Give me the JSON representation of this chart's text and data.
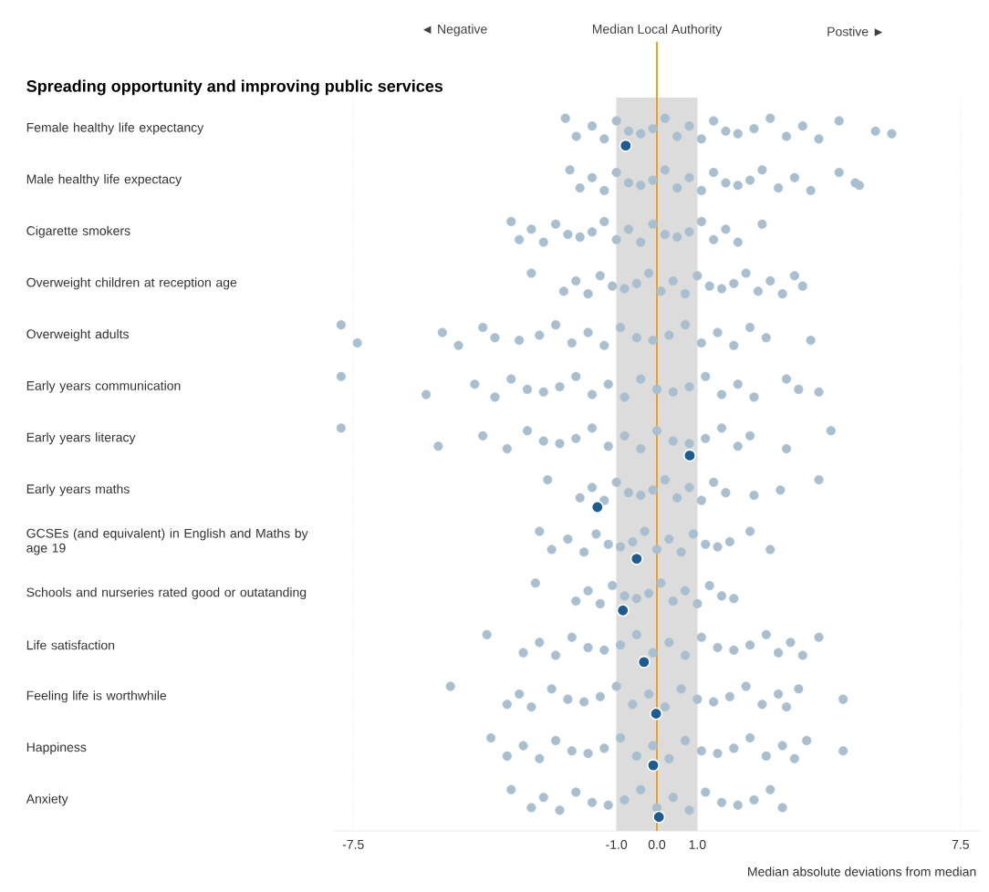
{
  "chart_data": {
    "type": "scatter",
    "orientation": "horizontal",
    "title": "Spreading opportunity and improving public services",
    "xlabel": "Median absolute deviations from median",
    "annotations": [
      "◄ Negative",
      "Postive ►"
    ],
    "xlim": [
      -8,
      8
    ],
    "xticks": [
      -7.5,
      {
        "value": -1,
        "label": "-1.0"
      },
      {
        "value": 0,
        "label": "0.0"
      },
      {
        "value": 1,
        "label": "1.0"
      },
      7.5
    ],
    "categories": [
      "Female healthy life expectancy",
      "Male healthy life expectacy",
      "Cigarette smokers",
      "Overweight children at reception age",
      "Overweight adults",
      "Early years communication",
      "Early years literacy",
      "Early years maths",
      "GCSEs (and equivalent) in English and Maths by age 19",
      "Schools and nurseries rated good or outatanding",
      "Life satisfaction",
      "Feeling life is worthwhile",
      "Happiness",
      "Anxiety"
    ],
    "grid": "x",
    "marker": "circle",
    "ref_lines": [
      {
        "axis": "x",
        "value": 0,
        "label": "Median Local Authority",
        "color": "#f0a020"
      }
    ],
    "bands": [
      {
        "axis": "x",
        "from": -1,
        "to": 1,
        "color": "#dcdcdc"
      }
    ],
    "series": [
      {
        "color": "#a9bfcf",
        "values": [
          -2.26,
          -2.15,
          -3.6,
          -3.1,
          -7.8,
          -7.8,
          -7.8,
          -2.7,
          -2.9,
          -3.0,
          -4.2,
          -5.1,
          -4.1,
          -3.6
        ]
      },
      {
        "color": "#a9bfcf",
        "values": [
          -1.99,
          -1.9,
          -3.4,
          -2.3,
          -7.4,
          -5.7,
          -5.4,
          -1.9,
          -2.6,
          -2.0,
          -3.3,
          -3.7,
          -3.7,
          -3.1
        ]
      },
      {
        "color": "#a9bfcf",
        "values": [
          -1.6,
          -1.6,
          -3.1,
          -2.0,
          -5.3,
          -4.5,
          -4.3,
          -1.6,
          -2.2,
          -1.7,
          -2.9,
          -3.4,
          -3.3,
          -2.8
        ]
      },
      {
        "color": "#a9bfcf",
        "values": [
          -1.3,
          -1.3,
          -2.8,
          -1.7,
          -4.9,
          -4.0,
          -3.7,
          -1.3,
          -1.8,
          -1.4,
          -2.5,
          -3.1,
          -2.9,
          -2.4
        ]
      },
      {
        "color": "#a9bfcf",
        "values": [
          -1.0,
          -1.0,
          -2.5,
          -1.4,
          -4.3,
          -3.6,
          -3.2,
          -1.0,
          -1.5,
          -1.1,
          -2.1,
          -2.6,
          -2.5,
          -2.0
        ]
      },
      {
        "color": "#a9bfcf",
        "values": [
          -0.7,
          -0.7,
          -2.2,
          -1.1,
          -4.0,
          -3.2,
          -2.8,
          -0.7,
          -1.2,
          -0.8,
          -1.7,
          -2.2,
          -2.1,
          -1.6
        ]
      },
      {
        "color": "#a9bfcf",
        "values": [
          -0.4,
          -0.4,
          -1.9,
          -0.8,
          -3.4,
          -2.8,
          -2.4,
          -0.4,
          -0.9,
          -0.5,
          -1.3,
          -1.8,
          -1.7,
          -1.2
        ]
      },
      {
        "color": "#a9bfcf",
        "values": [
          -0.1,
          -0.1,
          -1.6,
          -0.5,
          -2.9,
          -2.4,
          -2.0,
          -0.1,
          -0.6,
          -0.2,
          -0.9,
          -1.4,
          -1.3,
          -0.8
        ]
      },
      {
        "color": "#a9bfcf",
        "values": [
          0.2,
          0.2,
          -1.3,
          -0.2,
          -2.5,
          -2.0,
          -1.6,
          0.2,
          -0.3,
          0.1,
          -0.5,
          -1.0,
          -0.9,
          -0.4
        ]
      },
      {
        "color": "#a9bfcf",
        "values": [
          0.5,
          0.5,
          -1.0,
          0.1,
          -2.1,
          -1.6,
          -1.2,
          0.5,
          0,
          0.4,
          -0.1,
          -0.6,
          -0.5,
          0
        ]
      },
      {
        "color": "#a9bfcf",
        "values": [
          0.8,
          0.8,
          -0.7,
          0.4,
          -1.7,
          -1.2,
          -0.8,
          0.8,
          0.3,
          0.7,
          0.3,
          -0.2,
          -0.1,
          0.4
        ]
      },
      {
        "color": "#a9bfcf",
        "values": [
          1.1,
          1.1,
          -0.4,
          0.7,
          -1.3,
          -0.8,
          -0.4,
          1.1,
          0.6,
          1.0,
          0.7,
          0.2,
          0.3,
          0.8
        ]
      },
      {
        "color": "#a9bfcf",
        "values": [
          1.4,
          1.4,
          -0.1,
          1.0,
          -0.9,
          -0.4,
          0,
          1.4,
          0.9,
          1.3,
          1.1,
          0.6,
          0.7,
          1.2
        ]
      },
      {
        "color": "#a9bfcf",
        "values": [
          1.7,
          1.7,
          0.2,
          1.3,
          -0.5,
          0,
          0.4,
          1.7,
          1.2,
          1.6,
          1.5,
          1.0,
          1.1,
          1.6
        ]
      },
      {
        "color": "#a9bfcf",
        "values": [
          2.0,
          2.0,
          0.5,
          1.6,
          -0.1,
          0.4,
          0.8,
          2.4,
          1.5,
          1.9,
          1.9,
          1.4,
          1.5,
          2.0
        ]
      },
      {
        "color": "#a9bfcf",
        "values": [
          2.4,
          2.3,
          0.8,
          1.9,
          0.3,
          0.8,
          1.2,
          3.05,
          1.8,
          null,
          2.3,
          1.8,
          1.9,
          2.4
        ]
      },
      {
        "color": "#a9bfcf",
        "values": [
          2.8,
          2.6,
          1.1,
          2.2,
          0.7,
          1.2,
          1.6,
          4.0,
          2.3,
          null,
          2.7,
          2.2,
          2.3,
          2.8
        ]
      },
      {
        "color": "#a9bfcf",
        "values": [
          3.2,
          3.0,
          1.4,
          2.5,
          1.1,
          1.6,
          2.0,
          null,
          2.8,
          null,
          3.0,
          2.6,
          2.7,
          3.1
        ]
      },
      {
        "color": "#a9bfcf",
        "values": [
          3.6,
          3.4,
          1.7,
          2.8,
          1.5,
          2.0,
          2.3,
          null,
          null,
          null,
          3.3,
          3.0,
          3.1,
          null
        ]
      },
      {
        "color": "#a9bfcf",
        "values": [
          4.0,
          3.8,
          2.0,
          3.1,
          1.9,
          2.4,
          3.2,
          null,
          null,
          null,
          3.6,
          3.2,
          3.4,
          null
        ]
      },
      {
        "color": "#a9bfcf",
        "values": [
          4.5,
          4.5,
          2.6,
          3.4,
          2.3,
          3.2,
          4.3,
          null,
          null,
          null,
          4.0,
          3.5,
          3.7,
          null
        ]
      },
      {
        "color": "#a9bfcf",
        "values": [
          5.4,
          4.9,
          null,
          3.6,
          2.7,
          3.5,
          null,
          null,
          null,
          null,
          null,
          4.6,
          4.6,
          null
        ]
      },
      {
        "color": "#a9bfcf",
        "values": [
          5.8,
          5.0,
          null,
          null,
          3.8,
          4.0,
          null,
          null,
          null,
          null,
          null,
          null,
          null,
          null
        ]
      },
      {
        "color": "#1f5b8e",
        "values": [
          -0.77,
          null,
          null,
          null,
          null,
          null,
          0.81,
          -1.47,
          -0.5,
          -0.84,
          -0.32,
          -0.02,
          -0.09,
          0.05
        ]
      }
    ]
  }
}
